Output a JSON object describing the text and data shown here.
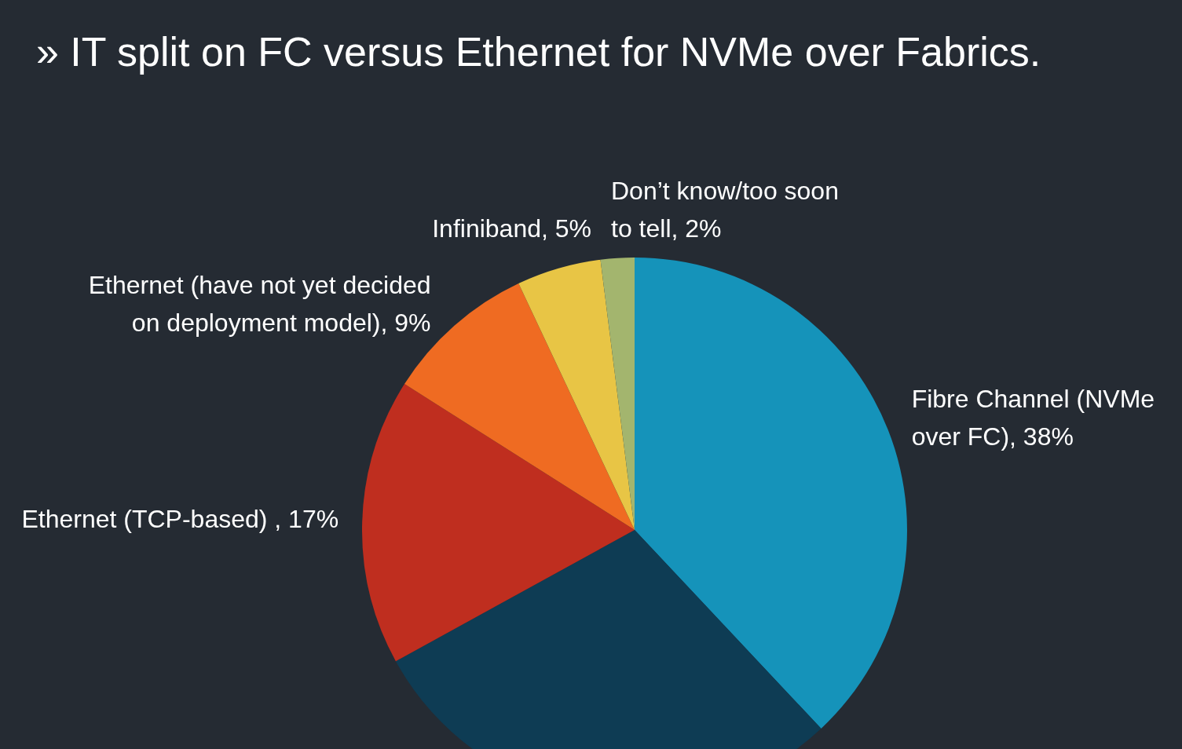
{
  "chart_data": {
    "type": "pie",
    "title": "» IT split on FC versus Ethernet for NVMe over Fabrics.",
    "categories": [
      "Fibre Channel (NVMe over FC)",
      null,
      "Ethernet (TCP-based) ",
      "Ethernet (have not yet decided on deployment model)",
      "Infiniband",
      "Don’t know/too soon to tell"
    ],
    "values": [
      38,
      29,
      17,
      9,
      5,
      2
    ],
    "value_labels": [
      "38%",
      null,
      "17%",
      "9%",
      "5%",
      "2%"
    ],
    "colors": [
      "#1593ba",
      "#0e3c54",
      "#bf2e1f",
      "#ef6b22",
      "#e8c545",
      "#a3b56e"
    ]
  }
}
